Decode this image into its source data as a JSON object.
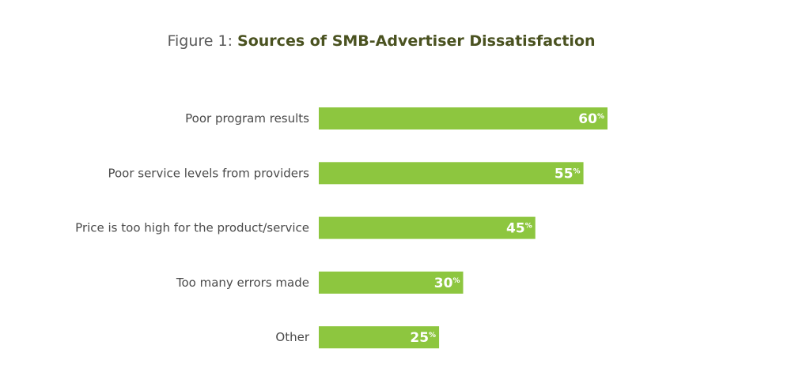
{
  "chart_data": {
    "type": "bar",
    "orientation": "horizontal",
    "title_prefix": "Figure 1: ",
    "title": "Sources of SMB-Advertiser Dissatisfaction",
    "categories": [
      "Poor program results",
      "Poor service levels from providers",
      "Price is too high for the product/service",
      "Too many errors made",
      "Other"
    ],
    "values": [
      60,
      55,
      45,
      30,
      25
    ],
    "value_unit": "%",
    "xlim": [
      0,
      100
    ],
    "grid": false,
    "legend": false,
    "bar_color": "#8dc63f",
    "label_color": "#ffffff"
  }
}
